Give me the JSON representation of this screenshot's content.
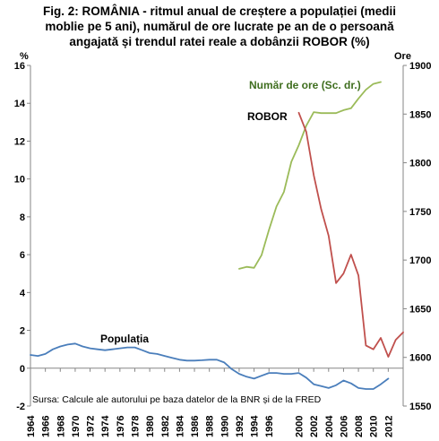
{
  "chart_data": {
    "type": "line",
    "title_lines": [
      "Fig. 2: ROMÂNIA - ritmul anual de creștere a populației (medii",
      "moblie pe 5 ani), numărul de ore lucrate pe an de o persoană",
      "angajată și trendul ratei reale a dobânzii ROBOR (%)"
    ],
    "ylabel_left": "%",
    "ylabel_right": "Ore",
    "ylim_left": [
      -2,
      16
    ],
    "ylim_right": [
      1550,
      1900
    ],
    "y_ticks_left": [
      "-2",
      "0",
      "2",
      "4",
      "6",
      "8",
      "10",
      "12",
      "14",
      "16"
    ],
    "y_ticks_right": [
      "1550",
      "1600",
      "1650",
      "1700",
      "1750",
      "1800",
      "1850",
      "1900"
    ],
    "x_ticks": [
      "1964",
      "1966",
      "1968",
      "1970",
      "1972",
      "1974",
      "1976",
      "1978",
      "1980",
      "1982",
      "1984",
      "1986",
      "1988",
      "1990",
      "1992",
      "1994",
      "1996",
      "2000",
      "2002",
      "2004",
      "2006",
      "2008",
      "2010",
      "2012"
    ],
    "xlim": [
      1964,
      2014
    ],
    "grid": false,
    "legend": "none",
    "source_note": "Sursa: Calcule ale autorului pe baza datelor de la BNR și de la FRED",
    "series": [
      {
        "name": "Populația",
        "axis": "left",
        "color": "#4a7ebb",
        "x": [
          1964,
          1965,
          1966,
          1967,
          1968,
          1969,
          1970,
          1971,
          1972,
          1973,
          1974,
          1975,
          1976,
          1977,
          1978,
          1979,
          1980,
          1981,
          1982,
          1983,
          1984,
          1985,
          1986,
          1987,
          1988,
          1989,
          1990,
          1991,
          1992,
          1993,
          1994,
          1995,
          1996,
          1997,
          1998,
          1999,
          2000,
          2001,
          2002,
          2003,
          2004,
          2005,
          2006,
          2007,
          2008,
          2009,
          2010,
          2011,
          2012
        ],
        "values": [
          0.7,
          0.65,
          0.75,
          1.0,
          1.15,
          1.25,
          1.3,
          1.15,
          1.05,
          1.0,
          0.95,
          1.0,
          1.05,
          1.1,
          1.1,
          0.95,
          0.8,
          0.75,
          0.65,
          0.55,
          0.45,
          0.4,
          0.4,
          0.42,
          0.45,
          0.45,
          0.3,
          -0.05,
          -0.3,
          -0.45,
          -0.55,
          -0.4,
          -0.25,
          -0.25,
          -0.3,
          -0.3,
          -0.25,
          -0.5,
          -0.85,
          -0.95,
          -1.05,
          -0.9,
          -0.65,
          -0.8,
          -1.05,
          -1.1,
          -1.1,
          -0.85,
          -0.55
        ]
      },
      {
        "name": "Număr de ore (Sc. dr.)",
        "axis": "right",
        "color": "#9bbb59",
        "x": [
          1992,
          1993,
          1994,
          1995,
          1996,
          1997,
          1998,
          1999,
          2000,
          2001,
          2002,
          2003,
          2004,
          2005,
          2006,
          2007,
          2008,
          2009,
          2010,
          2011
        ],
        "values": [
          1691,
          1693,
          1692,
          1705,
          1731,
          1755,
          1770,
          1801,
          1818,
          1838,
          1852,
          1851,
          1851,
          1851,
          1854,
          1856,
          1866,
          1875,
          1881,
          1883
        ]
      },
      {
        "name": "ROBOR",
        "axis": "left",
        "color": "#c0504d",
        "x": [
          2000,
          2001,
          2002,
          2003,
          2004,
          2005,
          2006,
          2007,
          2008,
          2009,
          2010,
          2011,
          2012,
          2013,
          2014
        ],
        "values": [
          13.5,
          12.5,
          10.2,
          8.4,
          7.0,
          4.5,
          5.0,
          6.0,
          4.9,
          1.2,
          1.0,
          1.6,
          0.6,
          1.5,
          1.9
        ]
      }
    ],
    "annotations": [
      {
        "text": "Număr de ore (Sc. dr.)",
        "color": "#3f6e1f"
      },
      {
        "text": "ROBOR",
        "color": "#000000"
      },
      {
        "text": "Populația",
        "color": "#000000"
      }
    ]
  }
}
